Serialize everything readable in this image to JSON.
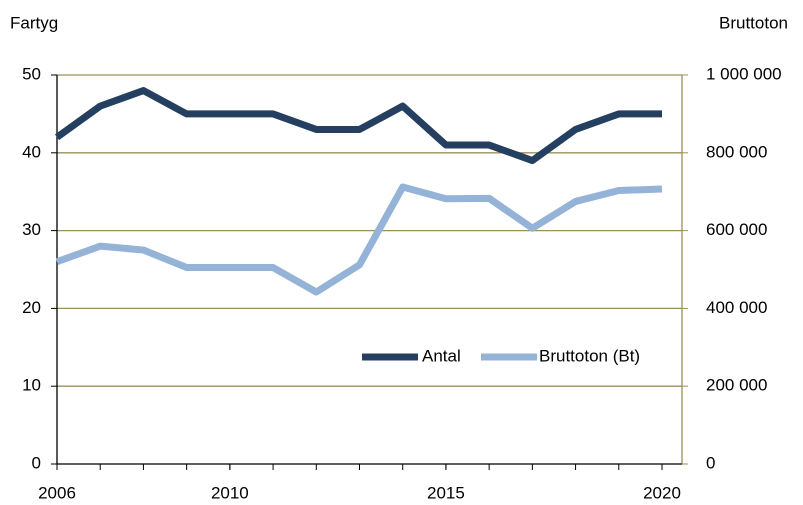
{
  "chart_data": {
    "type": "line",
    "y_label": "Fartyg",
    "y2_label": "Bruttoton",
    "x": [
      2006,
      2007,
      2008,
      2009,
      2010,
      2011,
      2012,
      2013,
      2014,
      2015,
      2016,
      2017,
      2018,
      2019,
      2020
    ],
    "xlim": [
      2006,
      2020
    ],
    "xticks": [
      2006,
      2010,
      2015,
      2020
    ],
    "ylim": [
      0,
      50
    ],
    "yticks": [
      0,
      10,
      20,
      30,
      40,
      50
    ],
    "y2lim": [
      0,
      1000000
    ],
    "y2ticks": [
      0,
      {
        "value": 200000,
        "label": "200 000"
      },
      {
        "value": 400000,
        "label": "400 000"
      },
      {
        "value": 600000,
        "label": "600 000"
      },
      {
        "value": 800000,
        "label": "800 000"
      },
      {
        "value": 1000000,
        "label": "1 000 000"
      }
    ],
    "grid": true,
    "legend": "right",
    "series": [
      {
        "name": "Antal",
        "color": "#243f60",
        "values": [
          42,
          46,
          48,
          45,
          45,
          45,
          43,
          43,
          46,
          41,
          41,
          39,
          43,
          45,
          45
        ]
      },
      {
        "name": "Bruttoton (Bt)",
        "color": "#95b3d7",
        "axis": "y2",
        "values": [
          520000,
          560000,
          550000,
          505000,
          505000,
          505000,
          442000,
          512000,
          712000,
          682000,
          683000,
          606000,
          675000,
          703000,
          707000
        ]
      }
    ]
  }
}
